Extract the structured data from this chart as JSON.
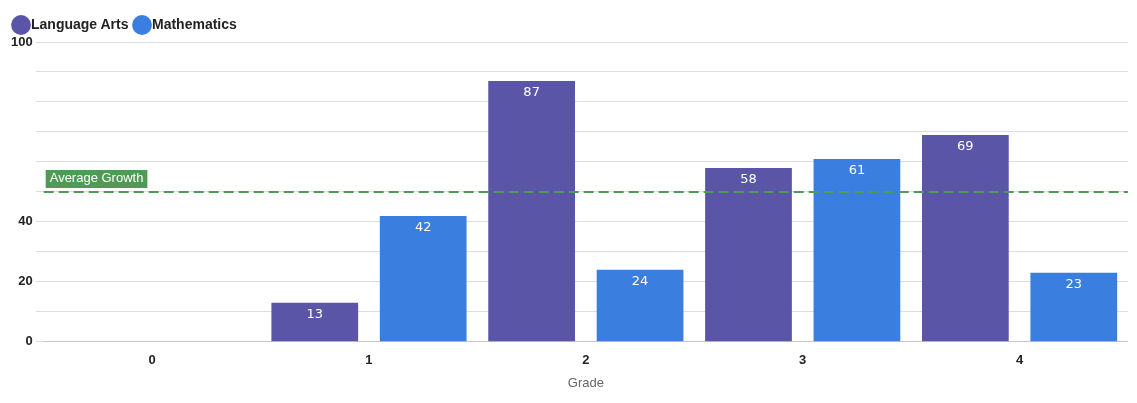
{
  "chart_data": {
    "type": "bar",
    "xlabel": "Grade",
    "categories": [
      "0",
      "1",
      "2",
      "3",
      "4"
    ],
    "series": [
      {
        "name": "Language Arts",
        "color": "#5b55a8",
        "values": [
          null,
          13,
          87,
          58,
          69
        ]
      },
      {
        "name": "Mathematics",
        "color": "#3a7fe0",
        "values": [
          null,
          42,
          24,
          61,
          23
        ]
      }
    ],
    "ylim": [
      0,
      100
    ],
    "yticks": [
      0,
      {
        "value": 10,
        "label": null
      },
      20,
      {
        "value": 30,
        "label": null
      },
      40,
      {
        "value": 50,
        "label": null
      },
      {
        "value": 60,
        "label": null
      },
      {
        "value": 70,
        "label": null
      },
      {
        "value": 80,
        "label": null
      },
      {
        "value": 90,
        "label": null
      },
      100
    ],
    "ref_lines": [
      {
        "axis": "y",
        "value": 50,
        "label": "Average Growth",
        "color": "#4f9a55",
        "line_style": "dashed"
      }
    ],
    "data_labels": true,
    "grid": "y",
    "legend": "top left"
  }
}
